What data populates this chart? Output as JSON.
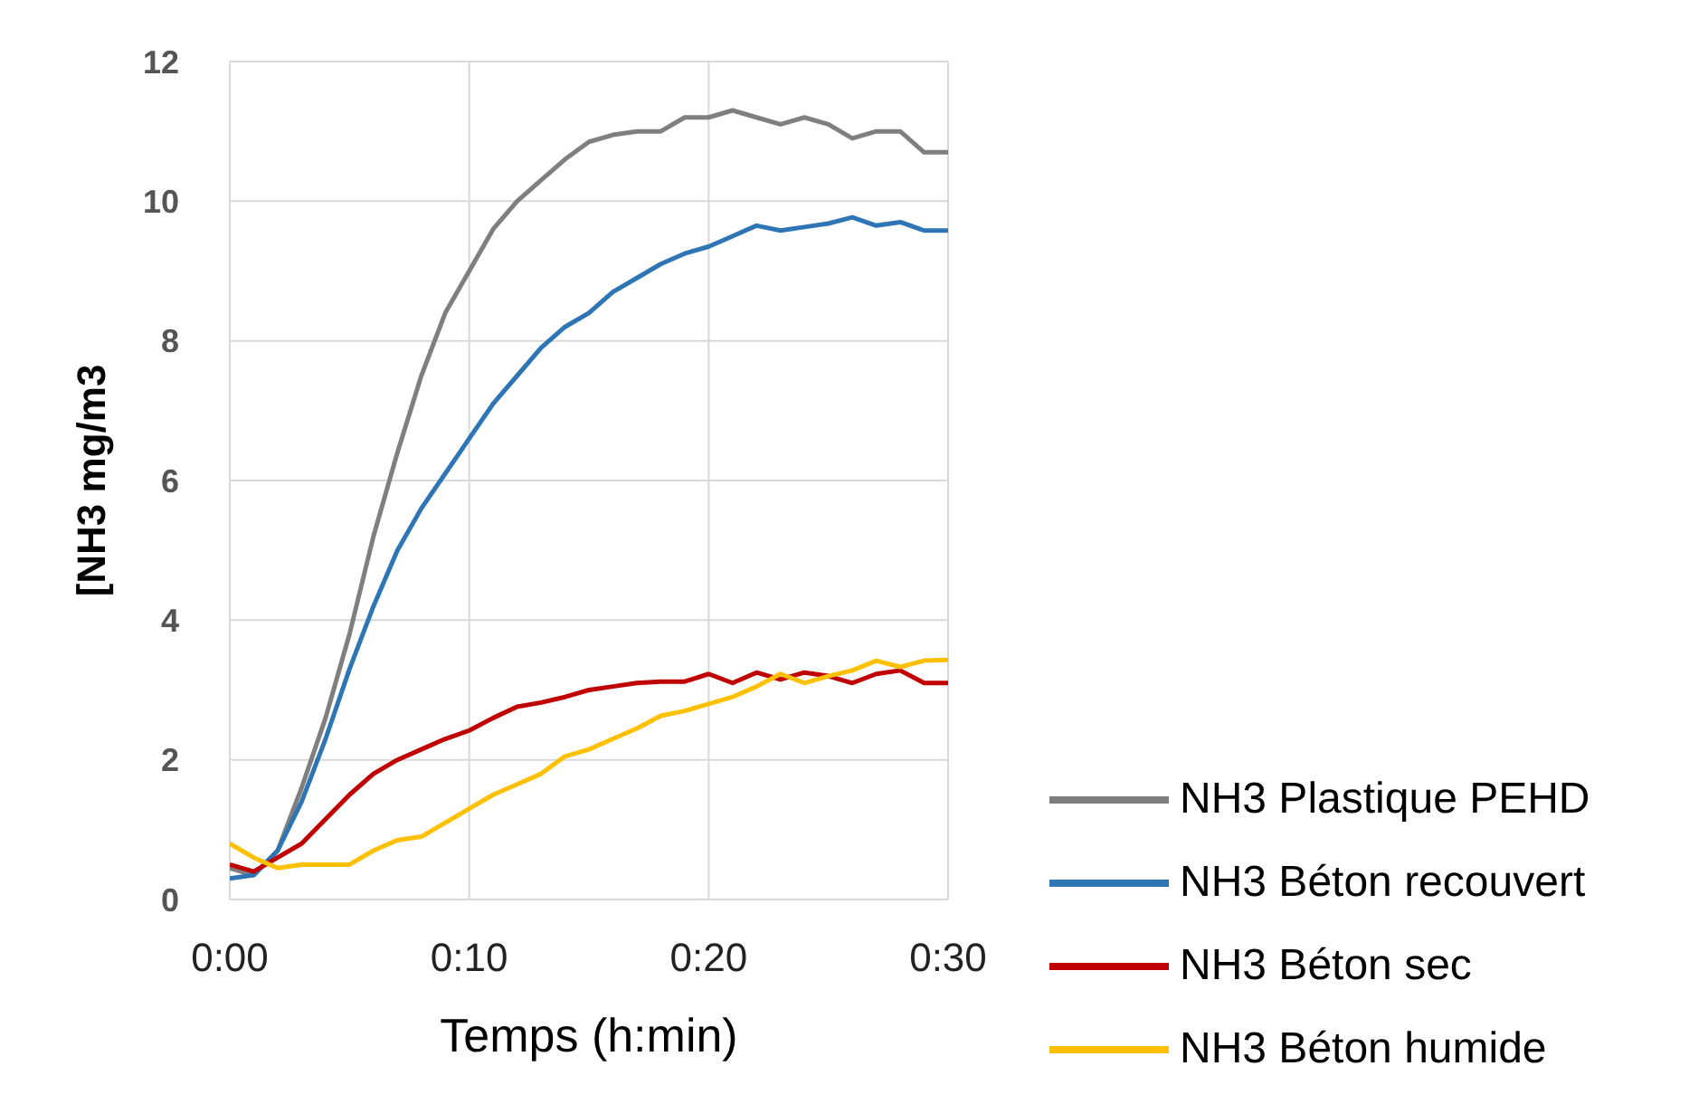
{
  "chart_data": {
    "type": "line",
    "xlabel": "Temps (h:min)",
    "ylabel": "[NH3  mg/m3",
    "x": [
      0,
      1,
      2,
      3,
      4,
      5,
      6,
      7,
      8,
      9,
      10,
      11,
      12,
      13,
      14,
      15,
      16,
      17,
      18,
      19,
      20,
      21,
      22,
      23,
      24,
      25,
      26,
      27,
      28,
      29,
      30
    ],
    "series": [
      {
        "name": "NH3 Plastique PEHD",
        "color": "#7f7f7f",
        "values": [
          0.45,
          0.35,
          0.7,
          1.6,
          2.6,
          3.8,
          5.2,
          6.4,
          7.5,
          8.4,
          9.0,
          9.6,
          10.0,
          10.3,
          10.6,
          10.85,
          10.95,
          11.0,
          11.0,
          11.2,
          11.2,
          11.3,
          11.2,
          11.1,
          11.2,
          11.1,
          10.9,
          11.0,
          11.0,
          10.7,
          10.7
        ]
      },
      {
        "name": "NH3 Béton recouvert",
        "color": "#2e75b6",
        "values": [
          0.3,
          0.35,
          0.7,
          1.4,
          2.3,
          3.3,
          4.2,
          5.0,
          5.6,
          6.1,
          6.6,
          7.1,
          7.5,
          7.9,
          8.2,
          8.4,
          8.7,
          8.9,
          9.1,
          9.25,
          9.35,
          9.5,
          9.65,
          9.58,
          9.63,
          9.68,
          9.77,
          9.65,
          9.7,
          9.58,
          9.58
        ]
      },
      {
        "name": "NH3 Béton sec",
        "color": "#c00000",
        "values": [
          0.5,
          0.4,
          0.6,
          0.8,
          1.15,
          1.5,
          1.8,
          2.0,
          2.15,
          2.3,
          2.42,
          2.6,
          2.76,
          2.82,
          2.9,
          3.0,
          3.05,
          3.1,
          3.12,
          3.12,
          3.23,
          3.1,
          3.25,
          3.15,
          3.25,
          3.2,
          3.1,
          3.23,
          3.28,
          3.1,
          3.1
        ]
      },
      {
        "name": "NH3 Béton humide",
        "color": "#ffc000",
        "values": [
          0.8,
          0.6,
          0.45,
          0.5,
          0.5,
          0.5,
          0.7,
          0.85,
          0.9,
          1.1,
          1.3,
          1.5,
          1.65,
          1.8,
          2.05,
          2.15,
          2.3,
          2.45,
          2.63,
          2.7,
          2.8,
          2.9,
          3.05,
          3.23,
          3.1,
          3.2,
          3.28,
          3.42,
          3.33,
          3.42,
          3.43
        ]
      }
    ],
    "xlim": [
      0,
      30
    ],
    "xticks": [
      {
        "value": 0,
        "label": "0:00"
      },
      {
        "value": 10,
        "label": "0:10"
      },
      {
        "value": 20,
        "label": "0:20"
      },
      {
        "value": 30,
        "label": "0:30"
      }
    ],
    "ylim": [
      0,
      12
    ],
    "yticks": [
      0,
      2,
      4,
      6,
      8,
      10,
      12
    ],
    "grid": true,
    "legend": "bottom right",
    "marker": "none",
    "line_style": "solid"
  }
}
